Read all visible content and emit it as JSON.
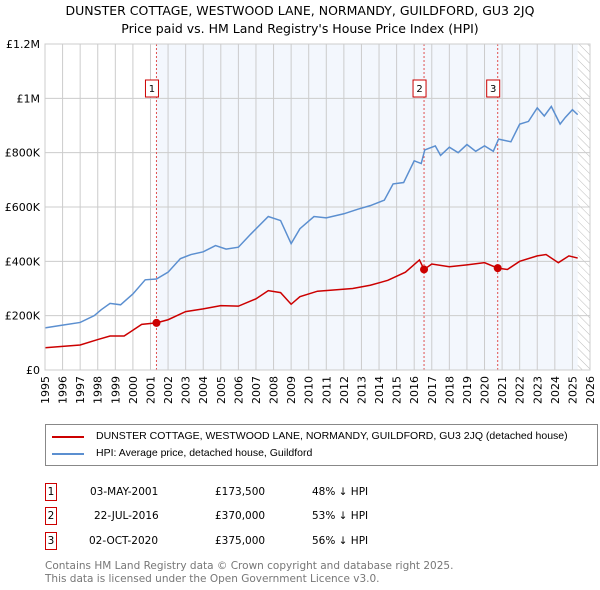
{
  "chart_data": {
    "type": "line",
    "title": "DUNSTER COTTAGE, WESTWOOD LANE, NORMANDY, GUILDFORD, GU3 2JQ",
    "subtitle": "Price paid vs. HM Land Registry's House Price Index (HPI)",
    "xlim": [
      1995,
      2026
    ],
    "ylim": [
      0,
      1200000
    ],
    "y_ticks": [
      {
        "v": 0,
        "label": "£0"
      },
      {
        "v": 200000,
        "label": "£200K"
      },
      {
        "v": 400000,
        "label": "£400K"
      },
      {
        "v": 600000,
        "label": "£600K"
      },
      {
        "v": 800000,
        "label": "£800K"
      },
      {
        "v": 1000000,
        "label": "£1M"
      },
      {
        "v": 1200000,
        "label": "£1.2M"
      }
    ],
    "x_ticks": [
      "1995",
      "1996",
      "1997",
      "1998",
      "1999",
      "2000",
      "2001",
      "2002",
      "2003",
      "2004",
      "2005",
      "2006",
      "2007",
      "2008",
      "2009",
      "2010",
      "2011",
      "2012",
      "2013",
      "2014",
      "2015",
      "2016",
      "2017",
      "2018",
      "2019",
      "2020",
      "2021",
      "2022",
      "2023",
      "2024",
      "2025",
      "2026"
    ],
    "grid": true,
    "series": [
      {
        "name": "DUNSTER COTTAGE, WESTWOOD LANE, NORMANDY, GUILDFORD, GU3 2JQ (detached house)",
        "color": "#cc0000",
        "points": [
          [
            1995,
            82000
          ],
          [
            1996,
            87000
          ],
          [
            1997,
            92000
          ],
          [
            1998,
            112000
          ],
          [
            1998.7,
            125000
          ],
          [
            1999.5,
            125000
          ],
          [
            2000.5,
            168000
          ],
          [
            2001.34,
            173500
          ],
          [
            2002,
            185000
          ],
          [
            2003,
            215000
          ],
          [
            2004,
            225000
          ],
          [
            2005,
            237000
          ],
          [
            2006,
            235000
          ],
          [
            2007,
            262000
          ],
          [
            2007.7,
            292000
          ],
          [
            2008.4,
            285000
          ],
          [
            2009,
            242000
          ],
          [
            2009.5,
            270000
          ],
          [
            2010.5,
            290000
          ],
          [
            2011.5,
            295000
          ],
          [
            2012.5,
            300000
          ],
          [
            2013.5,
            312000
          ],
          [
            2014.5,
            330000
          ],
          [
            2015.5,
            360000
          ],
          [
            2016.3,
            405000
          ],
          [
            2016.56,
            370000
          ],
          [
            2017,
            390000
          ],
          [
            2018,
            380000
          ],
          [
            2019,
            387000
          ],
          [
            2020,
            395000
          ],
          [
            2020.75,
            375000
          ],
          [
            2021.3,
            370000
          ],
          [
            2022,
            400000
          ],
          [
            2023,
            420000
          ],
          [
            2023.5,
            425000
          ],
          [
            2024.2,
            395000
          ],
          [
            2024.8,
            420000
          ],
          [
            2025.3,
            412000
          ]
        ]
      },
      {
        "name": "HPI: Average price, detached house, Guildford",
        "color": "#5b8fd0",
        "points": [
          [
            1995,
            155000
          ],
          [
            1996,
            165000
          ],
          [
            1997,
            175000
          ],
          [
            1997.8,
            200000
          ],
          [
            1998.2,
            222000
          ],
          [
            1998.7,
            245000
          ],
          [
            1999.3,
            240000
          ],
          [
            2000,
            280000
          ],
          [
            2000.7,
            332000
          ],
          [
            2001.34,
            335000
          ],
          [
            2002,
            360000
          ],
          [
            2002.7,
            410000
          ],
          [
            2003.3,
            425000
          ],
          [
            2004,
            435000
          ],
          [
            2004.7,
            458000
          ],
          [
            2005.3,
            445000
          ],
          [
            2006,
            452000
          ],
          [
            2006.7,
            500000
          ],
          [
            2007.7,
            565000
          ],
          [
            2008.4,
            550000
          ],
          [
            2009,
            465000
          ],
          [
            2009.5,
            520000
          ],
          [
            2010.3,
            565000
          ],
          [
            2011,
            560000
          ],
          [
            2012,
            575000
          ],
          [
            2012.8,
            592000
          ],
          [
            2013.5,
            605000
          ],
          [
            2014.3,
            625000
          ],
          [
            2014.8,
            685000
          ],
          [
            2015.4,
            690000
          ],
          [
            2016,
            770000
          ],
          [
            2016.4,
            760000
          ],
          [
            2016.6,
            810000
          ],
          [
            2017.2,
            825000
          ],
          [
            2017.5,
            790000
          ],
          [
            2018,
            820000
          ],
          [
            2018.5,
            800000
          ],
          [
            2019,
            830000
          ],
          [
            2019.5,
            805000
          ],
          [
            2020,
            825000
          ],
          [
            2020.5,
            805000
          ],
          [
            2020.8,
            850000
          ],
          [
            2021.5,
            840000
          ],
          [
            2022,
            905000
          ],
          [
            2022.5,
            915000
          ],
          [
            2023,
            965000
          ],
          [
            2023.4,
            935000
          ],
          [
            2023.8,
            970000
          ],
          [
            2024.3,
            905000
          ],
          [
            2024.6,
            930000
          ],
          [
            2025,
            958000
          ],
          [
            2025.3,
            940000
          ]
        ]
      }
    ],
    "sales": [
      {
        "n": "1",
        "date": "03-MAY-2001",
        "x": 2001.34,
        "price": 173500,
        "price_label": "£173,500",
        "hpi": "48% ↓ HPI"
      },
      {
        "n": "2",
        "date": "22-JUL-2016",
        "x": 2016.56,
        "price": 370000,
        "price_label": "£370,000",
        "hpi": "53% ↓ HPI"
      },
      {
        "n": "3",
        "date": "02-OCT-2020",
        "x": 2020.75,
        "price": 375000,
        "price_label": "£375,000",
        "hpi": "56% ↓ HPI"
      }
    ],
    "legend_placement": "bottom"
  },
  "footer": [
    "Contains HM Land Registry data © Crown copyright and database right 2025.",
    "This data is licensed under the Open Government Licence v3.0."
  ]
}
